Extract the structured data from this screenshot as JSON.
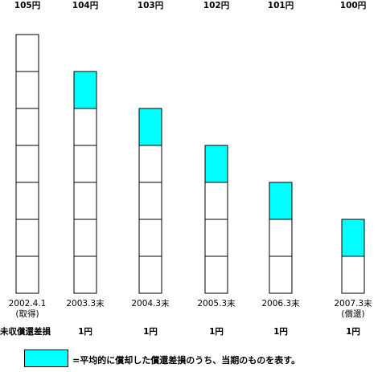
{
  "highlight_color": "#00ffff",
  "stack_total_units": 7,
  "row_label": "未収償還差損",
  "columns": [
    {
      "top": "105円",
      "bottom": [
        "2002.4.1",
        "(取得)"
      ],
      "amount": "",
      "units": 7,
      "highlight": null
    },
    {
      "top": "104円",
      "bottom": [
        "2003.3末"
      ],
      "amount": "1円",
      "units": 6,
      "highlight": 1
    },
    {
      "top": "103円",
      "bottom": [
        "2004.3末"
      ],
      "amount": "1円",
      "units": 5,
      "highlight": 1
    },
    {
      "top": "102円",
      "bottom": [
        "2005.3末"
      ],
      "amount": "1円",
      "units": 4,
      "highlight": 1
    },
    {
      "top": "101円",
      "bottom": [
        "2006.3末"
      ],
      "amount": "1円",
      "units": 3,
      "highlight": 1
    },
    {
      "top": "100円",
      "bottom": [
        "2007.3末",
        "(償還)"
      ],
      "amount": "1円",
      "units": 2,
      "highlight": 1
    }
  ],
  "legend": {
    "text": "=平均的に償却した償還差損のうち、当期のものを表す。"
  }
}
